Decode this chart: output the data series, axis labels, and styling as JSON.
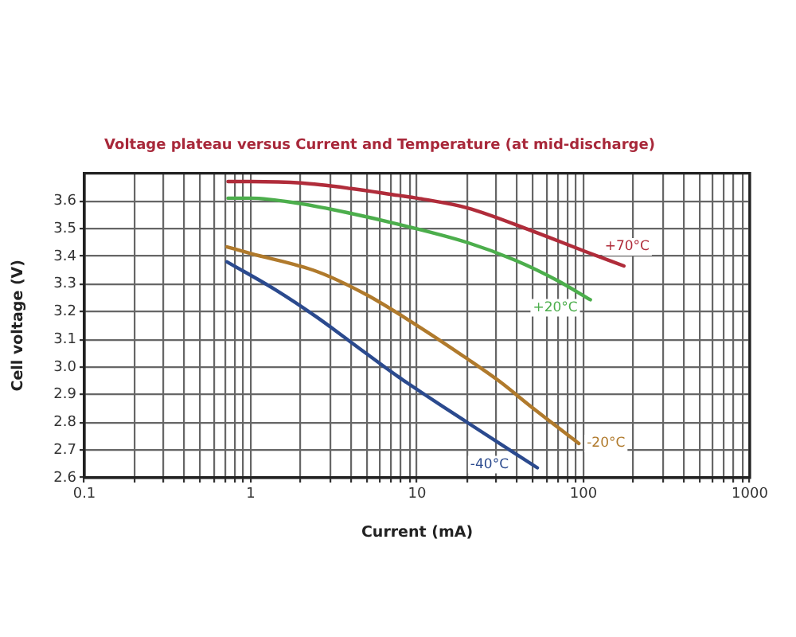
{
  "chart_data": {
    "type": "line",
    "title": "Voltage plateau versus Current and Temperature (at mid-discharge)",
    "xlabel": "Current (mA)",
    "ylabel": "Cell voltage (V)",
    "log": "x",
    "grid": true,
    "xlim": [
      0.1,
      1000
    ],
    "xticks": [
      0.1,
      {
        "value": 0.2,
        "label": null
      },
      {
        "value": 0.3,
        "label": null
      },
      {
        "value": 0.4,
        "label": null
      },
      {
        "value": 0.5,
        "label": null
      },
      {
        "value": 0.6,
        "label": null
      },
      {
        "value": 0.7,
        "label": null
      },
      {
        "value": 0.8,
        "label": null
      },
      {
        "value": 0.9,
        "label": null
      },
      1,
      {
        "value": 2,
        "label": null
      },
      {
        "value": 3,
        "label": null
      },
      {
        "value": 4,
        "label": null
      },
      {
        "value": 5,
        "label": null
      },
      {
        "value": 6,
        "label": null
      },
      {
        "value": 7,
        "label": null
      },
      {
        "value": 8,
        "label": null
      },
      {
        "value": 9,
        "label": null
      },
      10,
      {
        "value": 20,
        "label": null
      },
      {
        "value": 30,
        "label": null
      },
      {
        "value": 40,
        "label": null
      },
      {
        "value": 50,
        "label": null
      },
      {
        "value": 60,
        "label": null
      },
      {
        "value": 70,
        "label": null
      },
      {
        "value": 80,
        "label": null
      },
      {
        "value": 90,
        "label": null
      },
      100,
      {
        "value": 200,
        "label": null
      },
      {
        "value": 300,
        "label": null
      },
      {
        "value": 400,
        "label": null
      },
      {
        "value": 500,
        "label": null
      },
      {
        "value": 600,
        "label": null
      },
      {
        "value": 700,
        "label": null
      },
      {
        "value": 800,
        "label": null
      },
      {
        "value": 900,
        "label": null
      },
      1000
    ],
    "ylim": [
      2.6,
      3.7
    ],
    "yticks": [
      2.6,
      2.7,
      2.8,
      2.9,
      {
        "value": 3,
        "label": "3.0"
      },
      3.1,
      3.2,
      3.3,
      3.4,
      3.5,
      3.6
    ],
    "series": [
      {
        "name": "+70°C",
        "color": "#b02c3a",
        "x": [
          0.73,
          1,
          2,
          4,
          7.7,
          10,
          20,
          50,
          100,
          175
        ],
        "values": [
          3.67,
          3.67,
          3.665,
          3.645,
          3.62,
          3.61,
          3.575,
          3.49,
          3.42,
          3.365
        ]
      },
      {
        "name": "+20°C",
        "color": "#4cae4c",
        "x": [
          0.73,
          1,
          2,
          4,
          7.7,
          20,
          38.8,
          70,
          110
        ],
        "values": [
          3.61,
          3.61,
          3.59,
          3.555,
          3.516,
          3.45,
          3.386,
          3.312,
          3.243
        ]
      },
      {
        "name": "-20°C",
        "color": "#b07a2c",
        "x": [
          0.72,
          1,
          2.5,
          5,
          10,
          20,
          31,
          50,
          93.8
        ],
        "values": [
          3.434,
          3.41,
          3.345,
          3.26,
          3.15,
          3.03,
          2.95,
          2.85,
          2.724
        ]
      },
      {
        "name": "-40°C",
        "color": "#2b4a8e",
        "x": [
          0.72,
          1.4,
          2.5,
          4,
          7.7,
          20,
          52.8
        ],
        "values": [
          3.38,
          3.28,
          3.18,
          3.09,
          2.965,
          2.8,
          2.636
        ]
      }
    ]
  }
}
